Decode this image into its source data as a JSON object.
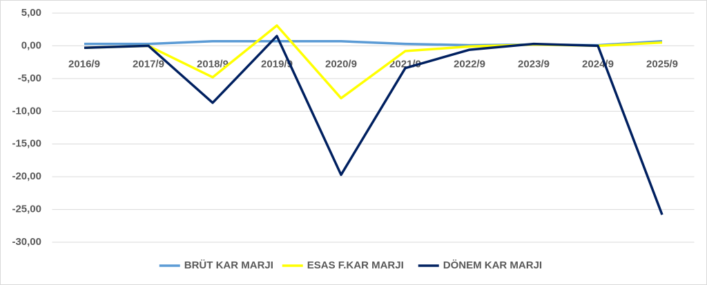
{
  "chart_data": {
    "type": "line",
    "categories": [
      "2016/9",
      "2017/9",
      "2018/9",
      "2019/9",
      "2020/9",
      "2021/9",
      "2022/9",
      "2023/9",
      "2024/9",
      "2025/9"
    ],
    "series": [
      {
        "name": "BRÜT KAR MARJI",
        "color": "#5b9bd5",
        "values": [
          0.3,
          0.3,
          0.7,
          0.7,
          0.7,
          0.3,
          0.1,
          0.2,
          0.1,
          0.7
        ]
      },
      {
        "name": "ESAS F.KAR MARJI",
        "color": "#ffff00",
        "values": [
          -0.3,
          0,
          -4.8,
          3.1,
          -8.0,
          -0.8,
          -0.1,
          0.2,
          0,
          0.5
        ]
      },
      {
        "name": "DÖNEM KAR MARJI",
        "color": "#002060",
        "values": [
          -0.3,
          0,
          -8.7,
          1.5,
          -19.7,
          -3.4,
          -0.6,
          0.3,
          0,
          -25.8
        ]
      }
    ],
    "ylim": [
      -30,
      5
    ],
    "yticks": [
      {
        "value": -30,
        "label": "-30,00"
      },
      {
        "value": -25,
        "label": "-25,00"
      },
      {
        "value": -20,
        "label": "-20,00"
      },
      {
        "value": -15,
        "label": "-15,00"
      },
      {
        "value": -10,
        "label": "-10,00"
      },
      {
        "value": -5,
        "label": "-5,00"
      },
      {
        "value": 0,
        "label": "0,00"
      },
      {
        "value": 5,
        "label": "5,00"
      }
    ],
    "grid": true,
    "legend": "bottom"
  }
}
